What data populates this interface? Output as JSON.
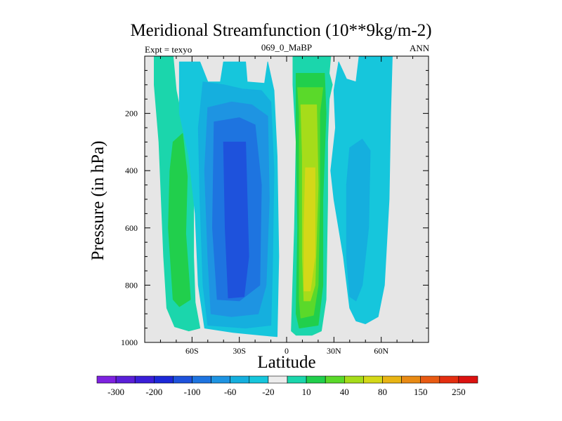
{
  "chart_data": {
    "type": "heatmap",
    "title": "Meridional Streamfunction (10**9kg/m-2)",
    "subtitle": "069_0_MaBP",
    "left_label": "Expt = texyo",
    "right_label": "ANN",
    "xlabel": "Latitude",
    "ylabel": "Pressure (in hPa)",
    "xlim": [
      -90,
      90
    ],
    "ylim": [
      1000,
      0
    ],
    "x_ticks": [
      {
        "value": -60,
        "label": "60S"
      },
      {
        "value": -30,
        "label": "30S"
      },
      {
        "value": 0,
        "label": "0"
      },
      {
        "value": 30,
        "label": "30N"
      },
      {
        "value": 60,
        "label": "60N"
      }
    ],
    "y_ticks": [
      {
        "value": 200,
        "label": "200"
      },
      {
        "value": 400,
        "label": "400"
      },
      {
        "value": 600,
        "label": "600"
      },
      {
        "value": 800,
        "label": "800"
      },
      {
        "value": 1000,
        "label": "1000"
      }
    ],
    "colorbar": {
      "colors": [
        "#7e22e0",
        "#5a1fd8",
        "#3a1ed8",
        "#1c28d8",
        "#1e52dc",
        "#1e74e0",
        "#1e94e2",
        "#15afde",
        "#16c6dc",
        "#ececec",
        "#1bd6ac",
        "#21cf4c",
        "#5ad92a",
        "#a6dc1a",
        "#d4d818",
        "#e8b414",
        "#e88a14",
        "#e85a12",
        "#e42e10",
        "#dc1210"
      ],
      "labels": [
        {
          "boundary": 1,
          "label": "-300"
        },
        {
          "boundary": 3,
          "label": "-200"
        },
        {
          "boundary": 5,
          "label": "-100"
        },
        {
          "boundary": 7,
          "label": "-60"
        },
        {
          "boundary": 9,
          "label": "-20"
        },
        {
          "boundary": 11,
          "label": "10"
        },
        {
          "boundary": 13,
          "label": "40"
        },
        {
          "boundary": 15,
          "label": "80"
        },
        {
          "boundary": 17,
          "label": "150"
        },
        {
          "boundary": 19,
          "label": "250"
        }
      ]
    },
    "regions": [
      {
        "name": "sh-polar-positive",
        "color": "#1bd6ac",
        "level": 10,
        "points": [
          [
            -84,
            0
          ],
          [
            -72,
            0
          ],
          [
            -70,
            120
          ],
          [
            -67,
            200
          ],
          [
            -60,
            330
          ],
          [
            -59,
            460
          ],
          [
            -59,
            700
          ],
          [
            -58,
            860
          ],
          [
            -55,
            950
          ],
          [
            -62,
            960
          ],
          [
            -71,
            945
          ],
          [
            -76,
            880
          ],
          [
            -78,
            700
          ],
          [
            -81,
            300
          ],
          [
            -84,
            100
          ]
        ]
      },
      {
        "name": "sh-polar-core",
        "color": "#21cf4c",
        "level": 40,
        "points": [
          [
            -72,
            300
          ],
          [
            -66,
            270
          ],
          [
            -63,
            420
          ],
          [
            -64,
            620
          ],
          [
            -61,
            850
          ],
          [
            -68,
            875
          ],
          [
            -72,
            850
          ],
          [
            -75,
            600
          ],
          [
            -74,
            400
          ]
        ]
      },
      {
        "name": "sh-ferrel-like-negative",
        "color": "#16c6dc",
        "level": -10,
        "points": [
          [
            -68,
            20
          ],
          [
            -55,
            20
          ],
          [
            -50,
            90
          ],
          [
            -42,
            90
          ],
          [
            -40,
            20
          ],
          [
            -26,
            20
          ],
          [
            -25,
            90
          ],
          [
            -14,
            95
          ],
          [
            -12,
            20
          ],
          [
            -8,
            120
          ],
          [
            -6,
            350
          ],
          [
            -5,
            700
          ],
          [
            -6,
            980
          ],
          [
            -16,
            975
          ],
          [
            -34,
            965
          ],
          [
            -52,
            950
          ],
          [
            -56,
            800
          ],
          [
            -58,
            550
          ],
          [
            -62,
            350
          ],
          [
            -68,
            200
          ]
        ]
      },
      {
        "name": "sh-negative-2",
        "color": "#15afde",
        "level": -20,
        "points": [
          [
            -53,
            90
          ],
          [
            -40,
            100
          ],
          [
            -28,
            115
          ],
          [
            -16,
            120
          ],
          [
            -10,
            160
          ],
          [
            -8,
            400
          ],
          [
            -9,
            750
          ],
          [
            -10,
            940
          ],
          [
            -26,
            950
          ],
          [
            -50,
            940
          ],
          [
            -53,
            800
          ],
          [
            -55,
            500
          ],
          [
            -56,
            250
          ]
        ]
      },
      {
        "name": "sh-negative-3",
        "color": "#1e94e2",
        "level": -40,
        "points": [
          [
            -50,
            180
          ],
          [
            -35,
            160
          ],
          [
            -22,
            170
          ],
          [
            -12,
            210
          ],
          [
            -11,
            500
          ],
          [
            -13,
            800
          ],
          [
            -18,
            900
          ],
          [
            -35,
            910
          ],
          [
            -48,
            900
          ],
          [
            -50,
            700
          ],
          [
            -52,
            400
          ]
        ]
      },
      {
        "name": "sh-negative-4",
        "color": "#1e74e0",
        "level": -60,
        "points": [
          [
            -46,
            230
          ],
          [
            -30,
            215
          ],
          [
            -20,
            240
          ],
          [
            -16,
            450
          ],
          [
            -17,
            800
          ],
          [
            -30,
            855
          ],
          [
            -44,
            850
          ],
          [
            -47,
            600
          ]
        ]
      },
      {
        "name": "sh-negative-core",
        "color": "#1e52dc",
        "level": -80,
        "points": [
          [
            -40,
            300
          ],
          [
            -26,
            300
          ],
          [
            -24,
            700
          ],
          [
            -27,
            840
          ],
          [
            -37,
            845
          ],
          [
            -39,
            600
          ]
        ]
      },
      {
        "name": "nh-hadley-positive",
        "color": "#1bd6ac",
        "level": 10,
        "points": [
          [
            4,
            0
          ],
          [
            28,
            0
          ],
          [
            27,
            60
          ],
          [
            29,
            100
          ],
          [
            27,
            150
          ],
          [
            26,
            300
          ],
          [
            26,
            500
          ],
          [
            25,
            850
          ],
          [
            22,
            960
          ],
          [
            16,
            975
          ],
          [
            6,
            975
          ],
          [
            3,
            960
          ],
          [
            5,
            600
          ],
          [
            6,
            300
          ],
          [
            4,
            100
          ]
        ]
      },
      {
        "name": "nh-hadley-2",
        "color": "#21cf4c",
        "level": 40,
        "points": [
          [
            6,
            60
          ],
          [
            24,
            60
          ],
          [
            25,
            200
          ],
          [
            23,
            500
          ],
          [
            23,
            800
          ],
          [
            20,
            940
          ],
          [
            8,
            950
          ],
          [
            6,
            900
          ],
          [
            7,
            600
          ],
          [
            6,
            300
          ]
        ]
      },
      {
        "name": "nh-hadley-3",
        "color": "#5ad92a",
        "level": 60,
        "points": [
          [
            7,
            110
          ],
          [
            23,
            110
          ],
          [
            21,
            200
          ],
          [
            21,
            500
          ],
          [
            20,
            800
          ],
          [
            17,
            905
          ],
          [
            9,
            915
          ],
          [
            8,
            850
          ],
          [
            8,
            500
          ],
          [
            8,
            200
          ]
        ]
      },
      {
        "name": "nh-hadley-4",
        "color": "#a6dc1a",
        "level": 80,
        "points": [
          [
            9,
            170
          ],
          [
            19,
            170
          ],
          [
            20,
            450
          ],
          [
            18,
            800
          ],
          [
            15,
            855
          ],
          [
            11,
            855
          ],
          [
            10,
            700
          ],
          [
            10,
            350
          ]
        ]
      },
      {
        "name": "nh-hadley-core",
        "color": "#d4d818",
        "level": 100,
        "points": [
          [
            12,
            390
          ],
          [
            18,
            390
          ],
          [
            18,
            700
          ],
          [
            15,
            820
          ],
          [
            11,
            820
          ],
          [
            11,
            600
          ]
        ]
      },
      {
        "name": "nh-negative",
        "color": "#16c6dc",
        "level": -10,
        "points": [
          [
            33,
            20
          ],
          [
            38,
            80
          ],
          [
            44,
            90
          ],
          [
            46,
            0
          ],
          [
            67,
            0
          ],
          [
            66,
            200
          ],
          [
            65,
            500
          ],
          [
            62,
            800
          ],
          [
            58,
            910
          ],
          [
            50,
            935
          ],
          [
            44,
            925
          ],
          [
            40,
            880
          ],
          [
            36,
            700
          ],
          [
            30,
            500
          ],
          [
            28,
            400
          ],
          [
            31,
            250
          ],
          [
            30,
            120
          ]
        ]
      },
      {
        "name": "nh-negative-core",
        "color": "#15afde",
        "level": -20,
        "points": [
          [
            40,
            320
          ],
          [
            48,
            290
          ],
          [
            53,
            330
          ],
          [
            52,
            600
          ],
          [
            48,
            800
          ],
          [
            44,
            855
          ],
          [
            40,
            840
          ],
          [
            38,
            700
          ],
          [
            38,
            450
          ]
        ]
      }
    ]
  }
}
